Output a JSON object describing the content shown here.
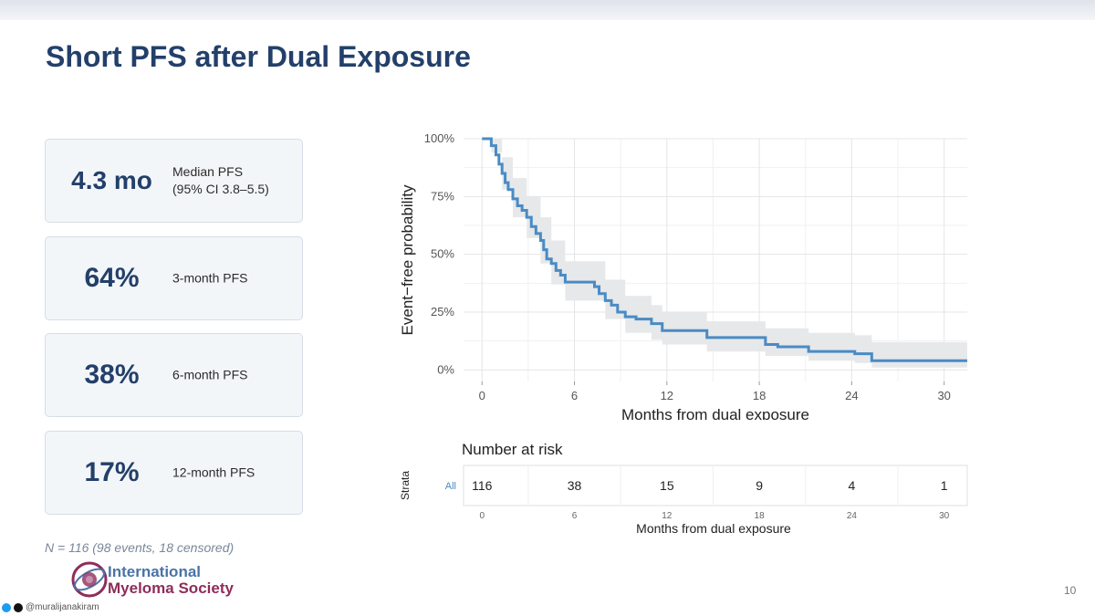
{
  "slide": {
    "title": "Short PFS after Dual Exposure",
    "page_number": "10",
    "footnote": "N = 116 (98 events, 18 censored)"
  },
  "cards": [
    {
      "value": "4.3 mo",
      "label_line1": "Median PFS",
      "label_line2": "(95% CI 3.8–5.5)"
    },
    {
      "value": "64%",
      "label_line1": "3-month PFS",
      "label_line2": ""
    },
    {
      "value": "38%",
      "label_line1": "6-month PFS",
      "label_line2": ""
    },
    {
      "value": "17%",
      "label_line1": "12-month PFS",
      "label_line2": ""
    }
  ],
  "logo": {
    "line1": "International",
    "line2": "Myeloma Society"
  },
  "social": {
    "handle": "@muralijanakiram"
  },
  "colors": {
    "title": "#23406a",
    "curve": "#4a8bc4",
    "ci_band": "#e6e8ea"
  },
  "chart_data": {
    "type": "line",
    "subtype": "kaplan-meier",
    "xlabel": "Months from dual exposure",
    "ylabel": "Event−free probability",
    "xlim": [
      -1.2,
      31.5
    ],
    "ylim": [
      -0.05,
      1.0
    ],
    "x_ticks": [
      0,
      6,
      12,
      18,
      24,
      30
    ],
    "y_ticks": [
      0,
      0.25,
      0.5,
      0.75,
      1.0
    ],
    "y_tick_labels": [
      "0%",
      "25%",
      "50%",
      "75%",
      "100%"
    ],
    "grid": true,
    "series": [
      {
        "points": [
          [
            0,
            1.0
          ],
          [
            0.5,
            1.0
          ],
          [
            0.6,
            0.97
          ],
          [
            0.9,
            0.93
          ],
          [
            1.1,
            0.89
          ],
          [
            1.3,
            0.85
          ],
          [
            1.5,
            0.81
          ],
          [
            1.7,
            0.78
          ],
          [
            2.0,
            0.74
          ],
          [
            2.3,
            0.71
          ],
          [
            2.6,
            0.69
          ],
          [
            2.9,
            0.66
          ],
          [
            3.2,
            0.62
          ],
          [
            3.5,
            0.59
          ],
          [
            3.8,
            0.56
          ],
          [
            4.0,
            0.52
          ],
          [
            4.2,
            0.48
          ],
          [
            4.5,
            0.46
          ],
          [
            4.8,
            0.43
          ],
          [
            5.1,
            0.41
          ],
          [
            5.4,
            0.38
          ],
          [
            7.0,
            0.38
          ],
          [
            7.3,
            0.36
          ],
          [
            7.6,
            0.33
          ],
          [
            8.0,
            0.3
          ],
          [
            8.4,
            0.28
          ],
          [
            8.8,
            0.25
          ],
          [
            9.3,
            0.23
          ],
          [
            10.0,
            0.22
          ],
          [
            11.0,
            0.2
          ],
          [
            11.7,
            0.17
          ],
          [
            13.8,
            0.17
          ],
          [
            14.6,
            0.14
          ],
          [
            17.6,
            0.14
          ],
          [
            18.4,
            0.11
          ],
          [
            19.2,
            0.1
          ],
          [
            21.2,
            0.08
          ],
          [
            24.2,
            0.07
          ],
          [
            25.3,
            0.04
          ],
          [
            31.5,
            0.04
          ]
        ],
        "ci_upper": [
          [
            0,
            1.0
          ],
          [
            0.6,
            1.0
          ],
          [
            1.3,
            0.92
          ],
          [
            2.0,
            0.83
          ],
          [
            2.9,
            0.75
          ],
          [
            3.8,
            0.66
          ],
          [
            4.5,
            0.56
          ],
          [
            5.4,
            0.47
          ],
          [
            7.0,
            0.47
          ],
          [
            8.0,
            0.39
          ],
          [
            9.3,
            0.32
          ],
          [
            11.0,
            0.28
          ],
          [
            11.7,
            0.25
          ],
          [
            13.8,
            0.25
          ],
          [
            14.6,
            0.21
          ],
          [
            17.6,
            0.21
          ],
          [
            18.4,
            0.18
          ],
          [
            21.2,
            0.16
          ],
          [
            24.2,
            0.15
          ],
          [
            25.3,
            0.12
          ],
          [
            31.5,
            0.12
          ]
        ],
        "ci_lower": [
          [
            0,
            1.0
          ],
          [
            0.6,
            0.94
          ],
          [
            1.3,
            0.78
          ],
          [
            2.0,
            0.66
          ],
          [
            2.9,
            0.57
          ],
          [
            3.8,
            0.46
          ],
          [
            4.5,
            0.37
          ],
          [
            5.4,
            0.3
          ],
          [
            7.0,
            0.3
          ],
          [
            8.0,
            0.22
          ],
          [
            9.3,
            0.16
          ],
          [
            11.0,
            0.13
          ],
          [
            11.7,
            0.11
          ],
          [
            13.8,
            0.11
          ],
          [
            14.6,
            0.08
          ],
          [
            17.6,
            0.08
          ],
          [
            18.4,
            0.06
          ],
          [
            21.2,
            0.04
          ],
          [
            24.2,
            0.03
          ],
          [
            25.3,
            0.01
          ],
          [
            31.5,
            0.01
          ]
        ]
      }
    ],
    "risk_table": {
      "title": "Number at risk",
      "strata_label": "Strata",
      "strata_name": "All",
      "xlabel": "Months from dual exposure",
      "times": [
        0,
        6,
        12,
        18,
        24,
        30
      ],
      "counts": [
        "116",
        "38",
        "15",
        "9",
        "4",
        "1"
      ]
    }
  }
}
